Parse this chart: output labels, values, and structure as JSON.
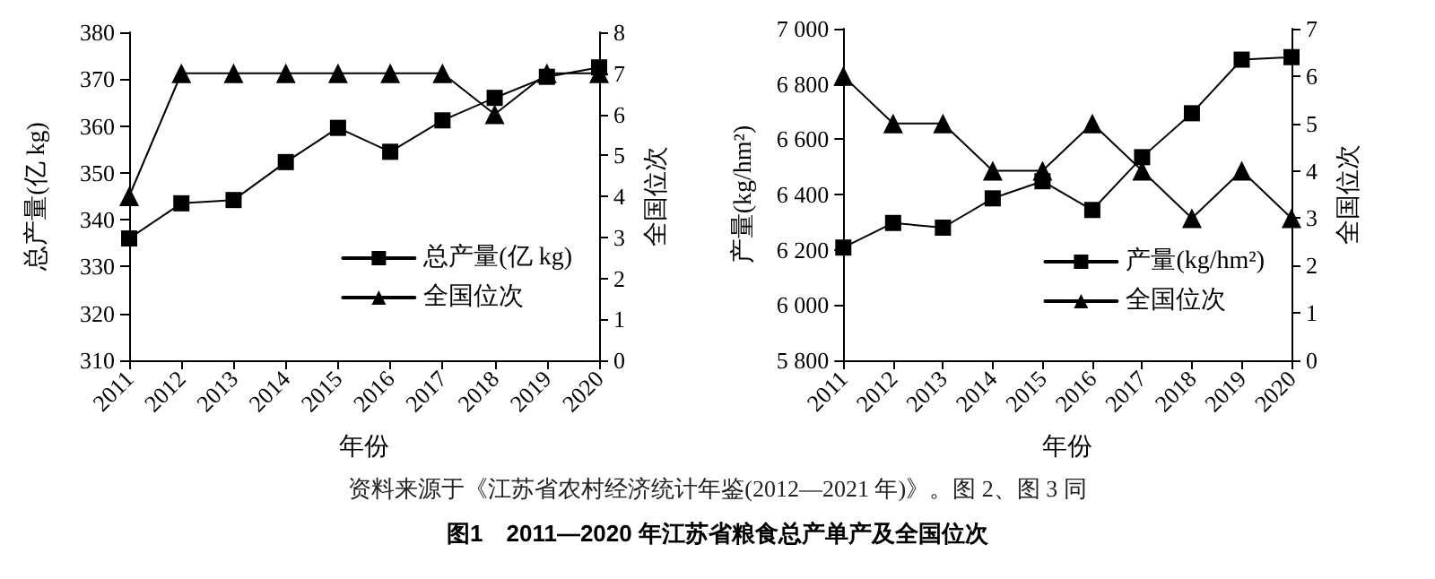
{
  "chart_data": [
    {
      "type": "line",
      "title": "图1　2011—2020 年江苏省粮食总产单产及全国位次",
      "annotations": [
        "资料来源于《江苏省农村经济统计年鉴(2012—2021 年)》。图 2、图 3 同"
      ],
      "xlabel": "年份",
      "ylabel": "总产量(亿 kg)",
      "y2label": "全国位次",
      "categories": [
        "2011",
        "2012",
        "2013",
        "2014",
        "2015",
        "2016",
        "2017",
        "2018",
        "2019",
        "2020"
      ],
      "series": [
        {
          "name": "总产量(亿 kg)",
          "color": "#000000",
          "marker": "square",
          "values": [
            336,
            343.5,
            344.2,
            352.3,
            359.6,
            354.5,
            361.2,
            366,
            370.5,
            372.5
          ]
        },
        {
          "name": "全国位次",
          "color": "#000000",
          "marker": "triangle",
          "axis": "y2",
          "values": [
            4,
            7,
            7,
            7,
            7,
            7,
            7,
            6,
            7,
            7
          ]
        }
      ],
      "ylim": [
        310,
        380
      ],
      "yticks": [
        310,
        320,
        330,
        340,
        350,
        360,
        370,
        380
      ],
      "y2lim": [
        0,
        8
      ],
      "y2ticks": [
        0,
        1,
        2,
        3,
        4,
        5,
        6,
        7,
        8
      ],
      "grid": false,
      "legend": "bottom right",
      "line_style": "solid"
    },
    {
      "type": "line",
      "xlabel": "年份",
      "ylabel": "产量(kg/hm²)",
      "y2label": "全国位次",
      "categories": [
        "2011",
        "2012",
        "2013",
        "2014",
        "2015",
        "2016",
        "2017",
        "2018",
        "2019",
        "2020"
      ],
      "series": [
        {
          "name": "产量(kg/hm²)",
          "color": "#000000",
          "marker": "square",
          "values": [
            6208,
            6297,
            6280,
            6386,
            6448,
            6344,
            6535,
            6694,
            6888,
            6897
          ]
        },
        {
          "name": "全国位次",
          "color": "#000000",
          "marker": "triangle",
          "axis": "y2",
          "values": [
            6,
            5,
            5,
            4,
            4,
            5,
            4,
            3,
            4,
            3
          ]
        }
      ],
      "ylim": [
        5800,
        7000
      ],
      "yticks": [
        {
          "value": 5800,
          "label": "5 800"
        },
        {
          "value": 6000,
          "label": "6 000"
        },
        {
          "value": 6200,
          "label": "6 200"
        },
        {
          "value": 6400,
          "label": "6 400"
        },
        {
          "value": 6600,
          "label": "6 600"
        },
        {
          "value": 6800,
          "label": "6 800"
        },
        {
          "value": 7000,
          "label": "7 000"
        }
      ],
      "y2lim": [
        0,
        7
      ],
      "y2ticks": [
        0,
        1,
        2,
        3,
        4,
        5,
        6,
        7
      ],
      "grid": false,
      "legend": "bottom right",
      "line_style": "solid"
    }
  ]
}
